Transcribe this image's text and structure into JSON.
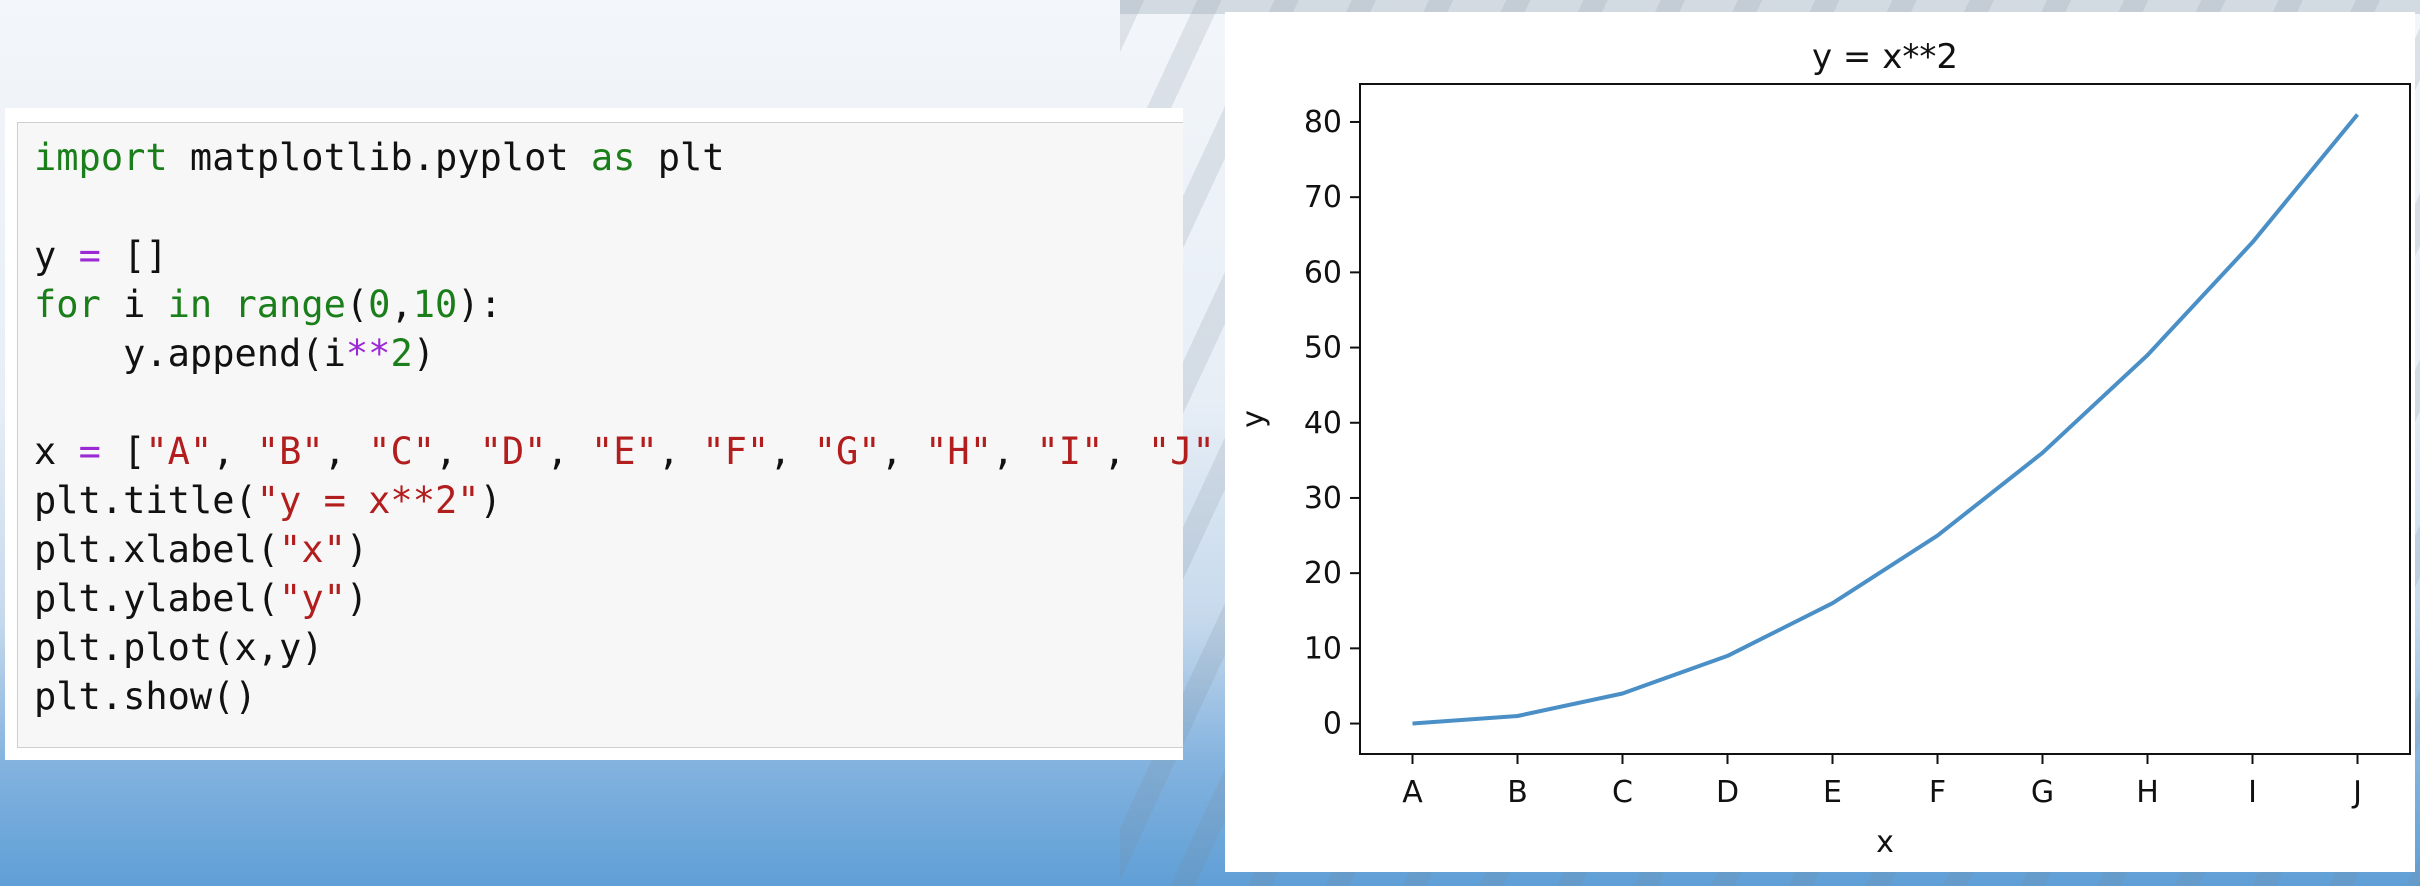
{
  "code": {
    "lines": [
      [
        {
          "t": "import",
          "c": "kw"
        },
        {
          "t": " matplotlib.pyplot ",
          "c": "plain"
        },
        {
          "t": "as",
          "c": "kw"
        },
        {
          "t": " plt",
          "c": "plain"
        }
      ],
      [],
      [
        {
          "t": "y ",
          "c": "plain"
        },
        {
          "t": "=",
          "c": "op"
        },
        {
          "t": " []",
          "c": "plain"
        }
      ],
      [
        {
          "t": "for",
          "c": "kw"
        },
        {
          "t": " i ",
          "c": "plain"
        },
        {
          "t": "in",
          "c": "kw"
        },
        {
          "t": " ",
          "c": "plain"
        },
        {
          "t": "range",
          "c": "bi"
        },
        {
          "t": "(",
          "c": "plain"
        },
        {
          "t": "0",
          "c": "num"
        },
        {
          "t": ",",
          "c": "plain"
        },
        {
          "t": "10",
          "c": "num"
        },
        {
          "t": "):",
          "c": "plain"
        }
      ],
      [
        {
          "t": "    y.append(i",
          "c": "plain"
        },
        {
          "t": "**",
          "c": "op"
        },
        {
          "t": "2",
          "c": "num"
        },
        {
          "t": ")",
          "c": "plain"
        }
      ],
      [],
      [
        {
          "t": "x ",
          "c": "plain"
        },
        {
          "t": "=",
          "c": "op"
        },
        {
          "t": " [",
          "c": "plain"
        },
        {
          "t": "\"A\"",
          "c": "str"
        },
        {
          "t": ", ",
          "c": "plain"
        },
        {
          "t": "\"B\"",
          "c": "str"
        },
        {
          "t": ", ",
          "c": "plain"
        },
        {
          "t": "\"C\"",
          "c": "str"
        },
        {
          "t": ", ",
          "c": "plain"
        },
        {
          "t": "\"D\"",
          "c": "str"
        },
        {
          "t": ", ",
          "c": "plain"
        },
        {
          "t": "\"E\"",
          "c": "str"
        },
        {
          "t": ", ",
          "c": "plain"
        },
        {
          "t": "\"F\"",
          "c": "str"
        },
        {
          "t": ", ",
          "c": "plain"
        },
        {
          "t": "\"G\"",
          "c": "str"
        },
        {
          "t": ", ",
          "c": "plain"
        },
        {
          "t": "\"H\"",
          "c": "str"
        },
        {
          "t": ", ",
          "c": "plain"
        },
        {
          "t": "\"I\"",
          "c": "str"
        },
        {
          "t": ", ",
          "c": "plain"
        },
        {
          "t": "\"J\"",
          "c": "str"
        },
        {
          "t": " ]",
          "c": "plain"
        }
      ],
      [
        {
          "t": "plt.title(",
          "c": "plain"
        },
        {
          "t": "\"y = x**2\"",
          "c": "str"
        },
        {
          "t": ")",
          "c": "plain"
        }
      ],
      [
        {
          "t": "plt.xlabel(",
          "c": "plain"
        },
        {
          "t": "\"x\"",
          "c": "str"
        },
        {
          "t": ")",
          "c": "plain"
        }
      ],
      [
        {
          "t": "plt.ylabel(",
          "c": "plain"
        },
        {
          "t": "\"y\"",
          "c": "str"
        },
        {
          "t": ")",
          "c": "plain"
        }
      ],
      [
        {
          "t": "plt.plot(x,y)",
          "c": "plain"
        }
      ],
      [
        {
          "t": "plt.show()",
          "c": "plain"
        }
      ]
    ]
  },
  "colors": {
    "line": "#4a8fc6",
    "keyword": "#1a7f1a",
    "operator": "#9b2ad6",
    "string": "#b21d1d"
  },
  "chart_data": {
    "type": "line",
    "title": "y = x**2",
    "xlabel": "x",
    "ylabel": "y",
    "categories": [
      "A",
      "B",
      "C",
      "D",
      "E",
      "F",
      "G",
      "H",
      "I",
      "J"
    ],
    "series": [
      {
        "values": [
          0,
          1,
          4,
          9,
          16,
          25,
          36,
          49,
          64,
          81
        ]
      }
    ],
    "ylim": [
      -4.05,
      85.05
    ],
    "yticks": [
      "0",
      "10",
      "20",
      "30",
      "40",
      "50",
      "60",
      "70",
      "80"
    ],
    "grid": false
  }
}
